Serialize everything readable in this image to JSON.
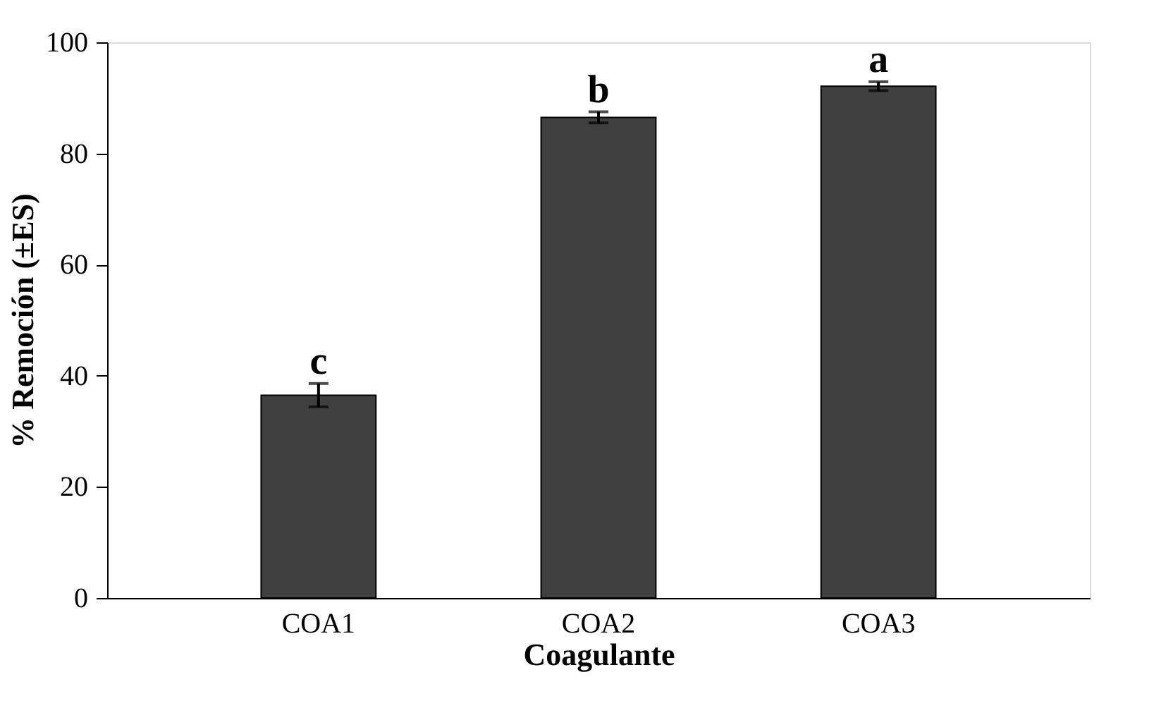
{
  "chart_data": {
    "type": "bar",
    "xlabel": "Coagulante",
    "ylabel": "% Remoción (±ES)",
    "categories": [
      "COA1",
      "COA2",
      "COA3"
    ],
    "values": [
      36.5,
      86.5,
      92.1
    ],
    "errors": [
      2.1,
      1.0,
      0.8
    ],
    "color": "#404040",
    "ylim": [
      0,
      100
    ],
    "yticks": [
      0,
      20,
      40,
      60,
      80,
      100
    ],
    "grid": false,
    "annotations": [
      {
        "text": "c",
        "x": "COA1",
        "y": 38.6
      },
      {
        "text": "b",
        "x": "COA2",
        "y": 87.5
      },
      {
        "text": "a",
        "x": "COA3",
        "y": 92.9
      }
    ]
  }
}
